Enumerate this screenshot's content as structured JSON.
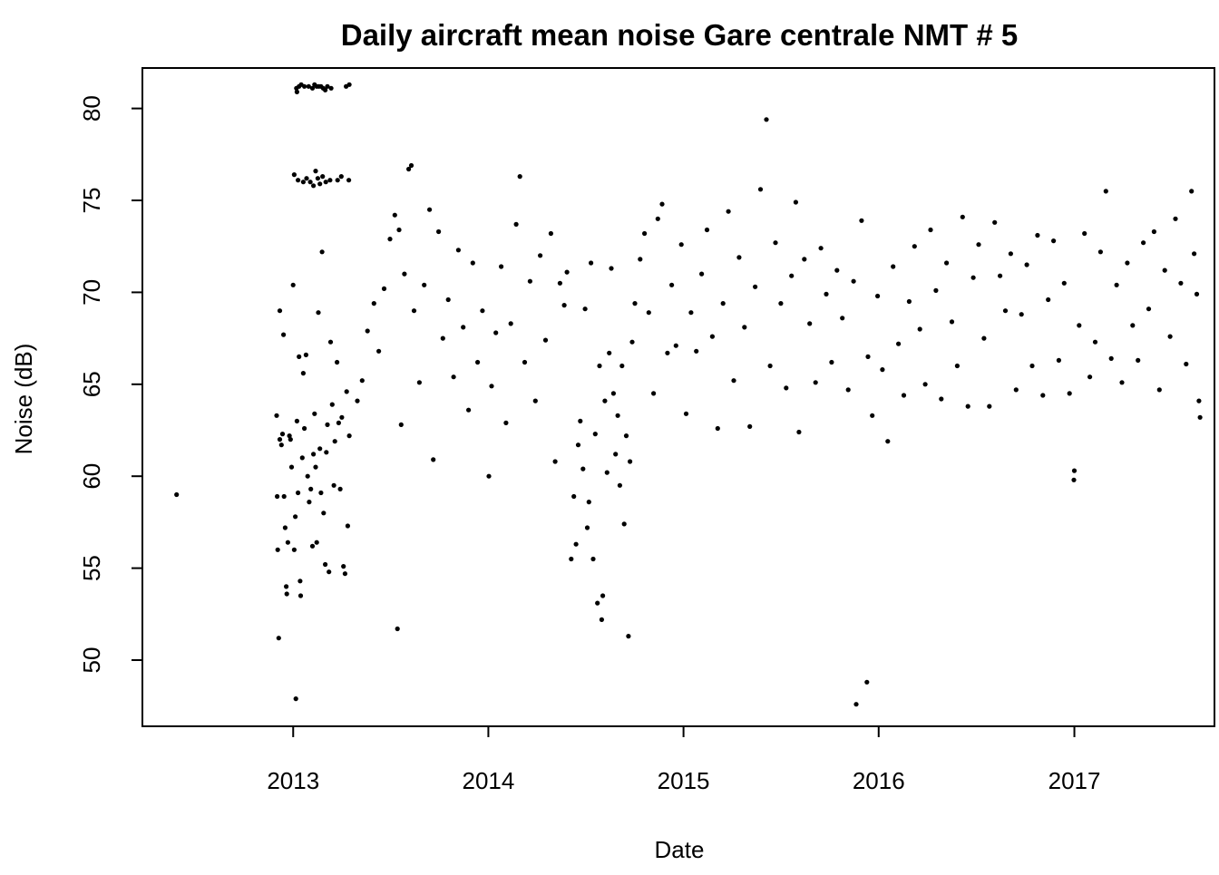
{
  "chart_data": {
    "type": "scatter",
    "title": "Daily aircraft mean noise Gare centrale NMT # 5",
    "xlabel": "Date",
    "ylabel": "Noise (dB)",
    "x_ticks": [
      "2013",
      "2014",
      "2015",
      "2016",
      "2017"
    ],
    "y_ticks": [
      "50",
      "55",
      "60",
      "65",
      "70",
      "75",
      "80"
    ],
    "xlim": [
      "2012-03-25",
      "2017-09-20"
    ],
    "ylim": [
      46.4,
      82.2
    ],
    "grid": false,
    "legend": "none",
    "colors": {
      "points": "#000000",
      "frame": "#000000",
      "background": "#ffffff"
    },
    "series": [
      {
        "points": [
          [
            "2012-05-28",
            59.0
          ],
          [
            "2012-12-05",
            51.2
          ],
          [
            "2012-12-01",
            63.3
          ],
          [
            "2012-12-07",
            69.0
          ],
          [
            "2012-12-03",
            56.0
          ],
          [
            "2012-12-02",
            58.9
          ],
          [
            "2012-12-07",
            62.0
          ],
          [
            "2012-12-10",
            61.7
          ],
          [
            "2012-12-12",
            62.3
          ],
          [
            "2012-12-14",
            67.7
          ],
          [
            "2012-12-15",
            58.9
          ],
          [
            "2012-12-17",
            57.2
          ],
          [
            "2012-12-19",
            54.0
          ],
          [
            "2012-12-20",
            53.6
          ],
          [
            "2012-12-22",
            56.4
          ],
          [
            "2012-12-25",
            62.2
          ],
          [
            "2012-12-27",
            62.0
          ],
          [
            "2012-12-29",
            60.5
          ],
          [
            "2013-01-01",
            70.4
          ],
          [
            "2013-01-03",
            56.0
          ],
          [
            "2013-01-06",
            47.9
          ],
          [
            "2013-01-05",
            57.8
          ],
          [
            "2013-01-08",
            63.0
          ],
          [
            "2013-01-10",
            59.1
          ],
          [
            "2013-01-12",
            66.5
          ],
          [
            "2013-01-14",
            54.3
          ],
          [
            "2013-01-15",
            53.5
          ],
          [
            "2013-01-18",
            61.0
          ],
          [
            "2013-01-20",
            65.6
          ],
          [
            "2013-01-22",
            62.6
          ],
          [
            "2013-01-25",
            66.6
          ],
          [
            "2013-01-28",
            60.0
          ],
          [
            "2013-01-31",
            58.6
          ],
          [
            "2013-02-03",
            59.3
          ],
          [
            "2013-02-06",
            56.2
          ],
          [
            "2013-02-08",
            61.2
          ],
          [
            "2013-02-10",
            63.4
          ],
          [
            "2013-02-12",
            60.5
          ],
          [
            "2013-02-14",
            56.4
          ],
          [
            "2013-02-17",
            68.9
          ],
          [
            "2013-02-20",
            61.5
          ],
          [
            "2013-02-22",
            59.1
          ],
          [
            "2013-02-24",
            72.2
          ],
          [
            "2013-02-27",
            58.0
          ],
          [
            "2013-03-02",
            55.2
          ],
          [
            "2013-03-04",
            61.3
          ],
          [
            "2013-03-06",
            62.8
          ],
          [
            "2013-03-09",
            54.8
          ],
          [
            "2013-03-12",
            67.3
          ],
          [
            "2013-03-15",
            63.9
          ],
          [
            "2013-03-18",
            59.5
          ],
          [
            "2013-03-20",
            61.9
          ],
          [
            "2013-03-24",
            66.2
          ],
          [
            "2013-03-27",
            62.9
          ],
          [
            "2013-03-30",
            59.3
          ],
          [
            "2013-04-02",
            63.2
          ],
          [
            "2013-04-05",
            55.1
          ],
          [
            "2013-04-08",
            54.7
          ],
          [
            "2013-04-11",
            64.6
          ],
          [
            "2013-04-13",
            57.3
          ],
          [
            "2013-04-16",
            62.2
          ],
          [
            "2013-01-07",
            81.1
          ],
          [
            "2013-01-08",
            80.9
          ],
          [
            "2013-01-12",
            81.2
          ],
          [
            "2013-01-16",
            81.3
          ],
          [
            "2013-01-22",
            81.2
          ],
          [
            "2013-01-30",
            81.2
          ],
          [
            "2013-02-06",
            81.1
          ],
          [
            "2013-02-10",
            81.3
          ],
          [
            "2013-02-14",
            81.2
          ],
          [
            "2013-02-18",
            81.2
          ],
          [
            "2013-02-22",
            81.2
          ],
          [
            "2013-02-26",
            81.1
          ],
          [
            "2013-03-02",
            81.0
          ],
          [
            "2013-03-06",
            81.2
          ],
          [
            "2013-03-13",
            81.1
          ],
          [
            "2013-04-10",
            81.2
          ],
          [
            "2013-04-16",
            81.3
          ],
          [
            "2013-01-03",
            76.4
          ],
          [
            "2013-01-10",
            76.1
          ],
          [
            "2013-01-20",
            76.0
          ],
          [
            "2013-01-26",
            76.2
          ],
          [
            "2013-02-02",
            76.0
          ],
          [
            "2013-02-08",
            75.8
          ],
          [
            "2013-02-12",
            76.6
          ],
          [
            "2013-02-16",
            76.2
          ],
          [
            "2013-02-20",
            75.9
          ],
          [
            "2013-02-25",
            76.3
          ],
          [
            "2013-03-03",
            76.0
          ],
          [
            "2013-03-11",
            76.1
          ],
          [
            "2013-03-25",
            76.1
          ],
          [
            "2013-04-01",
            76.3
          ],
          [
            "2013-04-15",
            76.1
          ],
          [
            "2013-05-01",
            64.1
          ],
          [
            "2013-05-10",
            65.2
          ],
          [
            "2013-05-20",
            67.9
          ],
          [
            "2013-06-01",
            69.4
          ],
          [
            "2013-06-10",
            66.8
          ],
          [
            "2013-06-20",
            70.2
          ],
          [
            "2013-07-01",
            72.9
          ],
          [
            "2013-07-10",
            74.2
          ],
          [
            "2013-07-18",
            73.4
          ],
          [
            "2013-07-28",
            71.0
          ],
          [
            "2013-08-05",
            76.7
          ],
          [
            "2013-08-10",
            76.9
          ],
          [
            "2013-08-15",
            69.0
          ],
          [
            "2013-08-25",
            65.1
          ],
          [
            "2013-09-03",
            70.4
          ],
          [
            "2013-09-13",
            74.5
          ],
          [
            "2013-09-20",
            60.9
          ],
          [
            "2013-07-15",
            51.7
          ],
          [
            "2013-07-22",
            62.8
          ],
          [
            "2013-09-30",
            73.3
          ],
          [
            "2013-10-08",
            67.5
          ],
          [
            "2013-10-18",
            69.6
          ],
          [
            "2013-10-28",
            65.4
          ],
          [
            "2013-11-06",
            72.3
          ],
          [
            "2013-11-15",
            68.1
          ],
          [
            "2013-11-25",
            63.6
          ],
          [
            "2013-12-03",
            71.6
          ],
          [
            "2013-12-12",
            66.2
          ],
          [
            "2013-12-21",
            69.0
          ],
          [
            "2014-01-02",
            60.0
          ],
          [
            "2014-01-07",
            64.9
          ],
          [
            "2014-01-15",
            67.8
          ],
          [
            "2014-01-25",
            71.4
          ],
          [
            "2014-02-03",
            62.9
          ],
          [
            "2014-02-12",
            68.3
          ],
          [
            "2014-02-22",
            73.7
          ],
          [
            "2014-03-01",
            76.3
          ],
          [
            "2014-03-10",
            66.2
          ],
          [
            "2014-03-20",
            70.6
          ],
          [
            "2014-03-30",
            64.1
          ],
          [
            "2014-04-08",
            72.0
          ],
          [
            "2014-04-18",
            67.4
          ],
          [
            "2014-04-28",
            73.2
          ],
          [
            "2014-05-06",
            60.8
          ],
          [
            "2014-05-15",
            70.5
          ],
          [
            "2014-05-23",
            69.3
          ],
          [
            "2014-05-28",
            71.1
          ],
          [
            "2014-06-05",
            55.5
          ],
          [
            "2014-06-10",
            58.9
          ],
          [
            "2014-06-14",
            56.3
          ],
          [
            "2014-06-18",
            61.7
          ],
          [
            "2014-06-22",
            63.0
          ],
          [
            "2014-06-27",
            60.4
          ],
          [
            "2014-07-01",
            69.1
          ],
          [
            "2014-07-05",
            57.2
          ],
          [
            "2014-07-08",
            58.6
          ],
          [
            "2014-07-12",
            71.6
          ],
          [
            "2014-07-16",
            55.5
          ],
          [
            "2014-07-20",
            62.3
          ],
          [
            "2014-07-24",
            53.1
          ],
          [
            "2014-07-28",
            66.0
          ],
          [
            "2014-08-01",
            52.2
          ],
          [
            "2014-08-03",
            53.5
          ],
          [
            "2014-08-07",
            64.1
          ],
          [
            "2014-08-11",
            60.2
          ],
          [
            "2014-08-15",
            66.7
          ],
          [
            "2014-08-19",
            71.3
          ],
          [
            "2014-08-23",
            64.5
          ],
          [
            "2014-08-27",
            61.2
          ],
          [
            "2014-08-31",
            63.3
          ],
          [
            "2014-09-04",
            59.5
          ],
          [
            "2014-09-08",
            66.0
          ],
          [
            "2014-09-12",
            57.4
          ],
          [
            "2014-09-16",
            62.2
          ],
          [
            "2014-09-20",
            51.3
          ],
          [
            "2014-09-23",
            60.8
          ],
          [
            "2014-09-27",
            67.3
          ],
          [
            "2014-10-02",
            69.4
          ],
          [
            "2014-10-12",
            71.8
          ],
          [
            "2014-10-20",
            73.2
          ],
          [
            "2014-10-28",
            68.9
          ],
          [
            "2014-11-06",
            64.5
          ],
          [
            "2014-11-14",
            74.0
          ],
          [
            "2014-11-22",
            74.8
          ],
          [
            "2014-12-02",
            66.7
          ],
          [
            "2014-12-10",
            70.4
          ],
          [
            "2014-12-18",
            67.1
          ],
          [
            "2014-12-28",
            72.6
          ],
          [
            "2015-01-06",
            63.4
          ],
          [
            "2015-01-15",
            68.9
          ],
          [
            "2015-01-25",
            66.8
          ],
          [
            "2015-02-04",
            71.0
          ],
          [
            "2015-02-14",
            73.4
          ],
          [
            "2015-02-24",
            67.6
          ],
          [
            "2015-03-06",
            62.6
          ],
          [
            "2015-03-16",
            69.4
          ],
          [
            "2015-03-26",
            74.4
          ],
          [
            "2015-04-05",
            65.2
          ],
          [
            "2015-04-15",
            71.9
          ],
          [
            "2015-04-25",
            68.1
          ],
          [
            "2015-05-05",
            62.7
          ],
          [
            "2015-05-15",
            70.3
          ],
          [
            "2015-05-25",
            75.6
          ],
          [
            "2015-06-05",
            79.4
          ],
          [
            "2015-06-12",
            66.0
          ],
          [
            "2015-06-22",
            72.7
          ],
          [
            "2015-07-02",
            69.4
          ],
          [
            "2015-07-12",
            64.8
          ],
          [
            "2015-07-22",
            70.9
          ],
          [
            "2015-07-30",
            74.9
          ],
          [
            "2015-08-05",
            62.4
          ],
          [
            "2015-08-15",
            71.8
          ],
          [
            "2015-08-25",
            68.3
          ],
          [
            "2015-09-05",
            65.1
          ],
          [
            "2015-09-15",
            72.4
          ],
          [
            "2015-09-25",
            69.9
          ],
          [
            "2015-10-05",
            66.2
          ],
          [
            "2015-10-15",
            71.2
          ],
          [
            "2015-10-25",
            68.6
          ],
          [
            "2015-11-05",
            64.7
          ],
          [
            "2015-11-15",
            70.6
          ],
          [
            "2015-11-20",
            47.6
          ],
          [
            "2015-11-30",
            73.9
          ],
          [
            "2015-12-10",
            48.8
          ],
          [
            "2015-12-12",
            66.5
          ],
          [
            "2015-12-20",
            63.3
          ],
          [
            "2015-12-30",
            69.8
          ],
          [
            "2016-01-08",
            65.8
          ],
          [
            "2016-01-18",
            61.9
          ],
          [
            "2016-01-28",
            71.4
          ],
          [
            "2016-02-07",
            67.2
          ],
          [
            "2016-02-17",
            64.4
          ],
          [
            "2016-02-27",
            69.5
          ],
          [
            "2016-03-08",
            72.5
          ],
          [
            "2016-03-18",
            68.0
          ],
          [
            "2016-03-28",
            65.0
          ],
          [
            "2016-04-07",
            73.4
          ],
          [
            "2016-04-17",
            70.1
          ],
          [
            "2016-04-27",
            64.2
          ],
          [
            "2016-05-07",
            71.6
          ],
          [
            "2016-05-17",
            68.4
          ],
          [
            "2016-05-27",
            66.0
          ],
          [
            "2016-06-06",
            74.1
          ],
          [
            "2016-06-16",
            63.8
          ],
          [
            "2016-06-26",
            70.8
          ],
          [
            "2016-07-06",
            72.6
          ],
          [
            "2016-07-16",
            67.5
          ],
          [
            "2016-07-26",
            63.8
          ],
          [
            "2016-08-05",
            73.8
          ],
          [
            "2016-08-15",
            70.9
          ],
          [
            "2016-08-25",
            69.0
          ],
          [
            "2016-09-04",
            72.1
          ],
          [
            "2016-09-14",
            64.7
          ],
          [
            "2016-09-24",
            68.8
          ],
          [
            "2016-10-04",
            71.5
          ],
          [
            "2016-10-14",
            66.0
          ],
          [
            "2016-10-24",
            73.1
          ],
          [
            "2016-11-03",
            64.4
          ],
          [
            "2016-11-13",
            69.6
          ],
          [
            "2016-11-23",
            72.8
          ],
          [
            "2016-12-03",
            66.3
          ],
          [
            "2016-12-13",
            70.5
          ],
          [
            "2016-12-23",
            64.5
          ],
          [
            "2016-12-31",
            59.8
          ],
          [
            "2017-01-01",
            60.3
          ],
          [
            "2017-01-10",
            68.2
          ],
          [
            "2017-01-20",
            73.2
          ],
          [
            "2017-01-30",
            65.4
          ],
          [
            "2017-02-09",
            67.3
          ],
          [
            "2017-02-19",
            72.2
          ],
          [
            "2017-03-01",
            75.5
          ],
          [
            "2017-03-11",
            66.4
          ],
          [
            "2017-03-21",
            70.4
          ],
          [
            "2017-03-31",
            65.1
          ],
          [
            "2017-04-10",
            71.6
          ],
          [
            "2017-04-20",
            68.2
          ],
          [
            "2017-04-30",
            66.3
          ],
          [
            "2017-05-10",
            72.7
          ],
          [
            "2017-05-20",
            69.1
          ],
          [
            "2017-05-30",
            73.3
          ],
          [
            "2017-06-09",
            64.7
          ],
          [
            "2017-06-19",
            71.2
          ],
          [
            "2017-06-29",
            67.6
          ],
          [
            "2017-07-09",
            74.0
          ],
          [
            "2017-07-19",
            70.5
          ],
          [
            "2017-07-29",
            66.1
          ],
          [
            "2017-08-08",
            75.5
          ],
          [
            "2017-08-13",
            72.1
          ],
          [
            "2017-08-18",
            69.9
          ],
          [
            "2017-08-22",
            64.1
          ],
          [
            "2017-08-24",
            63.2
          ]
        ]
      }
    ]
  }
}
